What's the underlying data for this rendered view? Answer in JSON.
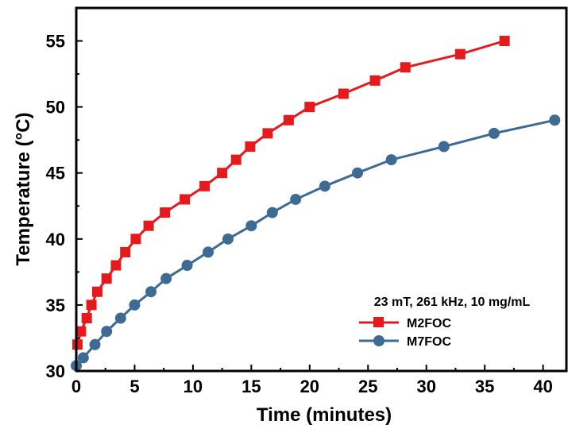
{
  "chart_data": {
    "type": "line",
    "xlabel": "Time (minutes)",
    "ylabel": "Temperature (°C)",
    "xlim": [
      0,
      42
    ],
    "ylim": [
      30,
      57.5
    ],
    "xticks": [
      0,
      5,
      10,
      15,
      20,
      25,
      30,
      35,
      40
    ],
    "yticks": [
      30,
      35,
      40,
      45,
      50,
      55
    ],
    "grid": false,
    "legend_position": "lower-right",
    "annotation": "23 mT, 261 kHz, 10 mg/mL",
    "series": [
      {
        "name": "M2FOC",
        "color": "#e41a1c",
        "marker": "square",
        "x": [
          0.1,
          0.4,
          0.9,
          1.3,
          1.8,
          2.6,
          3.4,
          4.2,
          5.1,
          6.2,
          7.6,
          9.3,
          11.0,
          12.5,
          13.7,
          14.9,
          16.4,
          18.2,
          20.0,
          22.9,
          25.6,
          28.2,
          32.9,
          36.7
        ],
        "y": [
          32,
          33,
          34,
          35,
          36,
          37,
          38,
          39,
          40,
          41,
          42,
          43,
          44,
          45,
          46,
          47,
          48,
          49,
          50,
          51,
          52,
          53,
          54,
          55
        ]
      },
      {
        "name": "M7FOC",
        "color": "#3d6b94",
        "marker": "circle",
        "x": [
          0.0,
          0.6,
          1.6,
          2.6,
          3.8,
          5.0,
          6.4,
          7.7,
          9.5,
          11.3,
          13.0,
          15.0,
          16.8,
          18.8,
          21.3,
          24.1,
          27.0,
          31.5,
          35.8,
          41.0
        ],
        "y": [
          30.4,
          31,
          32,
          33,
          34,
          35,
          36,
          37,
          38,
          39,
          40,
          41,
          42,
          43,
          44,
          45,
          46,
          47,
          48,
          49
        ]
      }
    ]
  }
}
